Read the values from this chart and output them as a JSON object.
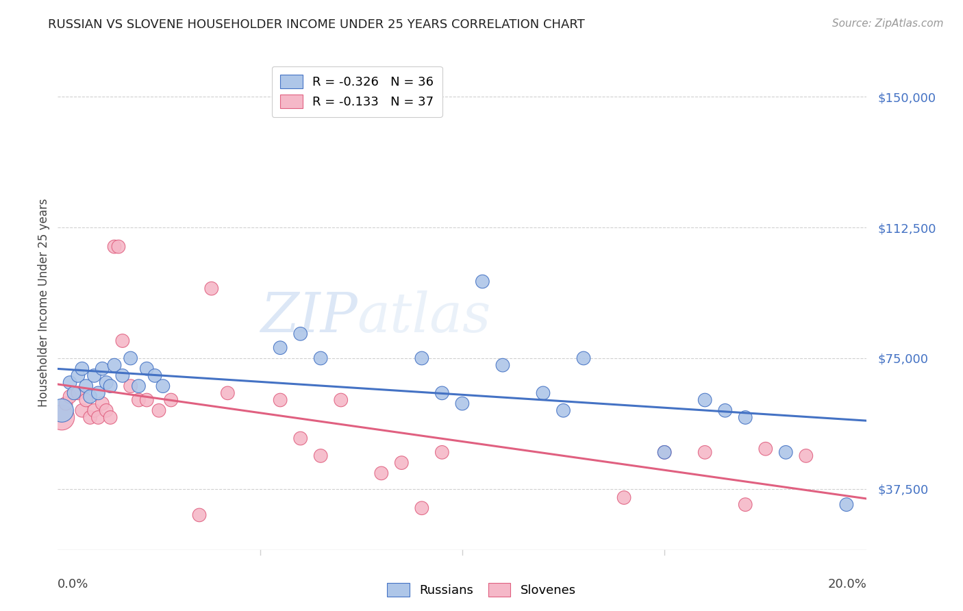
{
  "title": "RUSSIAN VS SLOVENE HOUSEHOLDER INCOME UNDER 25 YEARS CORRELATION CHART",
  "source": "Source: ZipAtlas.com",
  "ylabel": "Householder Income Under 25 years",
  "ytick_values": [
    37500,
    75000,
    112500,
    150000
  ],
  "ylim": [
    20000,
    162000
  ],
  "xlim": [
    0.0,
    0.2
  ],
  "legend_russian": "R = -0.326   N = 36",
  "legend_slovene": "R = -0.133   N = 37",
  "watermark_zip": "ZIP",
  "watermark_atlas": "atlas",
  "russian_color": "#aec6e8",
  "slovene_color": "#f5b8c8",
  "russian_line_color": "#4472c4",
  "slovene_line_color": "#e06080",
  "background_color": "#ffffff",
  "grid_color": "#d0d0d0",
  "russians_x": [
    0.001,
    0.003,
    0.004,
    0.005,
    0.006,
    0.007,
    0.008,
    0.009,
    0.01,
    0.011,
    0.012,
    0.013,
    0.014,
    0.016,
    0.018,
    0.02,
    0.022,
    0.024,
    0.026,
    0.055,
    0.06,
    0.065,
    0.09,
    0.095,
    0.1,
    0.105,
    0.11,
    0.12,
    0.125,
    0.13,
    0.15,
    0.16,
    0.165,
    0.17,
    0.18,
    0.195
  ],
  "russians_y": [
    60000,
    68000,
    65000,
    70000,
    72000,
    67000,
    64000,
    70000,
    65000,
    72000,
    68000,
    67000,
    73000,
    70000,
    75000,
    67000,
    72000,
    70000,
    67000,
    78000,
    82000,
    75000,
    75000,
    65000,
    62000,
    97000,
    73000,
    65000,
    60000,
    75000,
    48000,
    63000,
    60000,
    58000,
    48000,
    33000
  ],
  "russians_size": [
    600,
    200,
    200,
    200,
    200,
    200,
    200,
    200,
    200,
    200,
    200,
    200,
    200,
    200,
    200,
    200,
    200,
    200,
    200,
    200,
    200,
    200,
    200,
    200,
    200,
    200,
    200,
    200,
    200,
    200,
    200,
    200,
    200,
    200,
    200,
    200
  ],
  "slovenes_x": [
    0.001,
    0.002,
    0.003,
    0.005,
    0.006,
    0.007,
    0.008,
    0.009,
    0.01,
    0.011,
    0.012,
    0.013,
    0.014,
    0.015,
    0.016,
    0.018,
    0.02,
    0.022,
    0.025,
    0.028,
    0.035,
    0.038,
    0.042,
    0.055,
    0.06,
    0.065,
    0.07,
    0.08,
    0.085,
    0.09,
    0.095,
    0.14,
    0.15,
    0.16,
    0.17,
    0.175,
    0.185
  ],
  "slovenes_y": [
    58000,
    62000,
    64000,
    65000,
    60000,
    63000,
    58000,
    60000,
    58000,
    62000,
    60000,
    58000,
    107000,
    107000,
    80000,
    67000,
    63000,
    63000,
    60000,
    63000,
    30000,
    95000,
    65000,
    63000,
    52000,
    47000,
    63000,
    42000,
    45000,
    32000,
    48000,
    35000,
    48000,
    48000,
    33000,
    49000,
    47000
  ],
  "slovenes_size": [
    700,
    200,
    200,
    200,
    200,
    200,
    200,
    200,
    200,
    200,
    200,
    200,
    200,
    200,
    200,
    200,
    200,
    200,
    200,
    200,
    200,
    200,
    200,
    200,
    200,
    200,
    200,
    200,
    200,
    200,
    200,
    200,
    200,
    200,
    200,
    200,
    200
  ]
}
